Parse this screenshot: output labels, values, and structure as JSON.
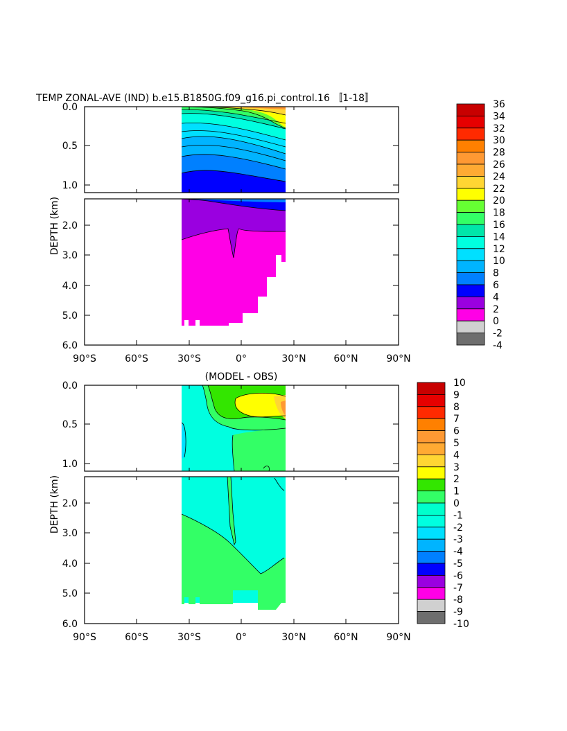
{
  "chart_data": [
    {
      "type": "heatmap",
      "title": "TEMP ZONAL-AVE (IND) b.e15.B1850G.f09_g16.pi_control.16 〚1-18〛",
      "ylabel": "DEPTH (km)",
      "x_ticks": [
        "90°S",
        "60°S",
        "30°S",
        "0°",
        "30°N",
        "60°N",
        "90°N"
      ],
      "y_ticks_upper": [
        "0.0",
        "0.5",
        "1.0"
      ],
      "y_ticks_lower": [
        "2.0",
        "3.0",
        "4.0",
        "5.0",
        "6.0"
      ],
      "colorbar_levels": [
        "36",
        "34",
        "32",
        "30",
        "28",
        "26",
        "24",
        "22",
        "20",
        "18",
        "16",
        "14",
        "12",
        "10",
        "8",
        "6",
        "4",
        "2",
        "0",
        "-2",
        "-4"
      ],
      "colorbar_colors": [
        "#c80000",
        "#e60000",
        "#ff2a00",
        "#ff8000",
        "#ff9933",
        "#ffaa33",
        "#ffd633",
        "#ffff00",
        "#66ff33",
        "#33ff66",
        "#00e6aa",
        "#00ffe0",
        "#00e0ff",
        "#00b4ff",
        "#0080ff",
        "#0000ff",
        "#9a00e0",
        "#ff00e6",
        "#d0d0d0",
        "#6e6e6e"
      ]
    },
    {
      "type": "heatmap",
      "title": "(MODEL - OBS)",
      "ylabel": "DEPTH (km)",
      "x_ticks": [
        "90°S",
        "60°S",
        "30°S",
        "0°",
        "30°N",
        "60°N",
        "90°N"
      ],
      "y_ticks_upper": [
        "0.0",
        "0.5",
        "1.0"
      ],
      "y_ticks_lower": [
        "2.0",
        "3.0",
        "4.0",
        "5.0",
        "6.0"
      ],
      "colorbar_levels": [
        "10",
        "9",
        "8",
        "7",
        "6",
        "5",
        "4",
        "3",
        "2",
        "1",
        "0",
        "-1",
        "-2",
        "-3",
        "-4",
        "-5",
        "-6",
        "-7",
        "-8",
        "-9",
        "-10"
      ],
      "colorbar_colors": [
        "#c80000",
        "#e60000",
        "#ff2a00",
        "#ff8000",
        "#ff9933",
        "#ffaa33",
        "#ffd633",
        "#ffff00",
        "#33e600",
        "#33ff66",
        "#00ffcc",
        "#00ffe0",
        "#00e0ff",
        "#00b4ff",
        "#0080ff",
        "#0000ff",
        "#9a00e0",
        "#ff00e6",
        "#d0d0d0",
        "#6e6e6e"
      ]
    }
  ]
}
